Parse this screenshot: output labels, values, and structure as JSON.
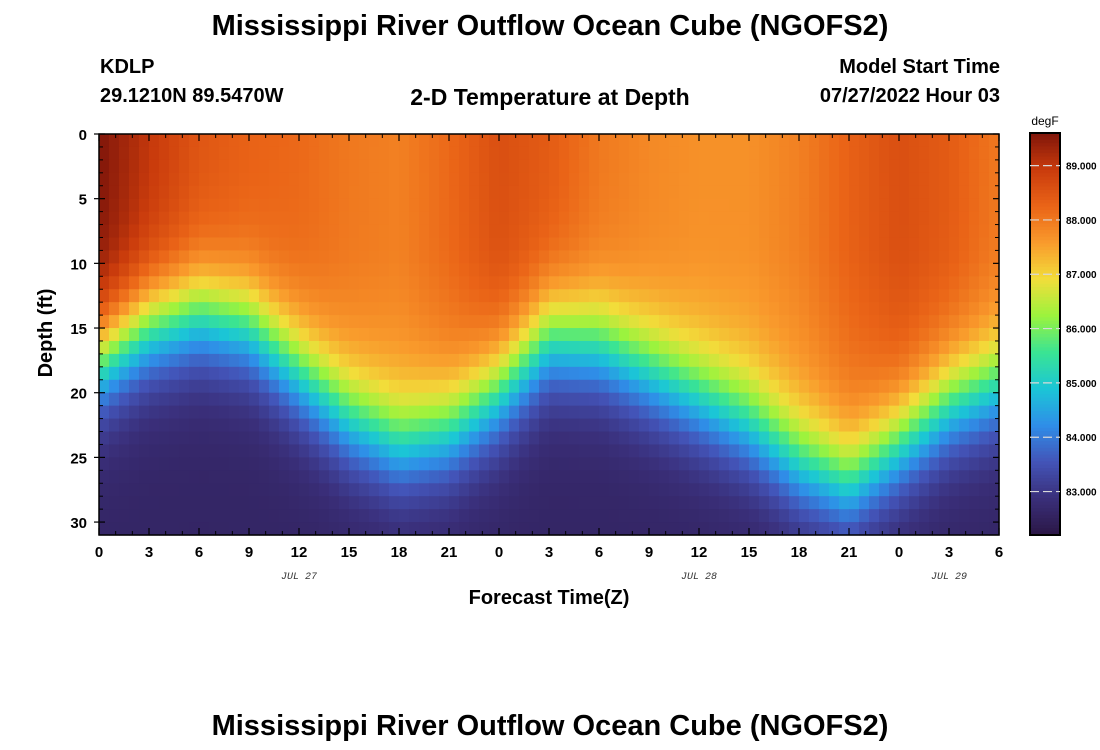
{
  "page": {
    "title": "Mississippi River Outflow Ocean Cube (NGOFS2)",
    "bottom_title": "Mississippi River Outflow Ocean Cube (NGOFS2)",
    "station_id": "KDLP",
    "station_coords": "29.1210N  89.5470W",
    "subtitle": "2-D Temperature at Depth",
    "start_label": "Model Start Time",
    "start_value": "07/27/2022 Hour 03"
  },
  "chart_data": {
    "type": "heatmap",
    "title": "2-D Temperature at Depth",
    "xlabel": "Forecast Time(Z)",
    "ylabel": "Depth (ft)",
    "x_range_hours": [
      0,
      54
    ],
    "x_tick_labels": [
      "0",
      "3",
      "6",
      "9",
      "12",
      "15",
      "18",
      "21",
      "0",
      "3",
      "6",
      "9",
      "12",
      "15",
      "18",
      "21",
      "0",
      "3",
      "6"
    ],
    "date_labels": [
      {
        "label": "JUL 27",
        "at_hour": 12
      },
      {
        "label": "JUL 28",
        "at_hour": 36
      },
      {
        "label": "JUL 29",
        "at_hour": 51
      }
    ],
    "ylim": [
      0,
      31
    ],
    "y_ticks": [
      0,
      5,
      10,
      15,
      20,
      25,
      30
    ],
    "y_inverted": true,
    "colorbar": {
      "unit": "degF",
      "range": [
        82.2,
        89.6
      ],
      "ticks": [
        "89.000",
        "88.000",
        "87.000",
        "86.000",
        "85.000",
        "84.000",
        "83.000"
      ],
      "tick_values": [
        89,
        88,
        87,
        86,
        85,
        84,
        83
      ],
      "colors": [
        "#2b1746",
        "#3a2f7a",
        "#4354b8",
        "#2f8ee8",
        "#1bc6d6",
        "#3ae493",
        "#9cf33d",
        "#f2dd3a",
        "#f99a2c",
        "#ea6417",
        "#c93b0c",
        "#7f150a"
      ]
    },
    "thermocline_depth_ft": [
      {
        "hour": 0,
        "depth": 17.5
      },
      {
        "hour": 3,
        "depth": 15.0
      },
      {
        "hour": 6,
        "depth": 14.0
      },
      {
        "hour": 9,
        "depth": 15.0
      },
      {
        "hour": 12,
        "depth": 18.5
      },
      {
        "hour": 15,
        "depth": 22.0
      },
      {
        "hour": 18,
        "depth": 24.0
      },
      {
        "hour": 21,
        "depth": 23.0
      },
      {
        "hour": 24,
        "depth": 20.0
      },
      {
        "hour": 27,
        "depth": 16.0
      },
      {
        "hour": 30,
        "depth": 16.5
      },
      {
        "hour": 33,
        "depth": 18.5
      },
      {
        "hour": 36,
        "depth": 20.5
      },
      {
        "hour": 39,
        "depth": 22.5
      },
      {
        "hour": 42,
        "depth": 25.5
      },
      {
        "hour": 45,
        "depth": 27.0
      },
      {
        "hour": 48,
        "depth": 24.0
      },
      {
        "hour": 51,
        "depth": 21.0
      },
      {
        "hour": 54,
        "depth": 19.5
      }
    ],
    "surface_temp_degF": [
      {
        "hour": 0,
        "temp": 89.6
      },
      {
        "hour": 3,
        "temp": 89.0
      },
      {
        "hour": 6,
        "temp": 88.5
      },
      {
        "hour": 9,
        "temp": 88.3
      },
      {
        "hour": 12,
        "temp": 88.2
      },
      {
        "hour": 15,
        "temp": 88.0
      },
      {
        "hour": 18,
        "temp": 87.9
      },
      {
        "hour": 21,
        "temp": 88.2
      },
      {
        "hour": 24,
        "temp": 88.6
      },
      {
        "hour": 27,
        "temp": 88.4
      },
      {
        "hour": 30,
        "temp": 88.0
      },
      {
        "hour": 33,
        "temp": 87.8
      },
      {
        "hour": 36,
        "temp": 87.7
      },
      {
        "hour": 39,
        "temp": 87.7
      },
      {
        "hour": 42,
        "temp": 87.9
      },
      {
        "hour": 45,
        "temp": 88.3
      },
      {
        "hour": 48,
        "temp": 88.6
      },
      {
        "hour": 51,
        "temp": 88.4
      },
      {
        "hour": 54,
        "temp": 88.0
      }
    ],
    "bottom_temp_degF": 82.6
  }
}
